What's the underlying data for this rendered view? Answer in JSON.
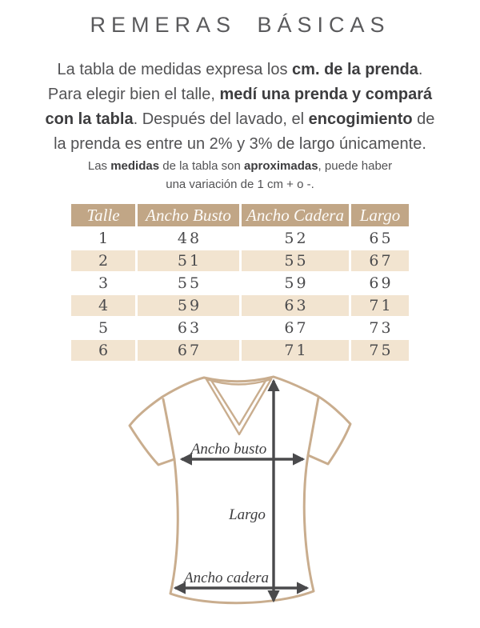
{
  "title": "REMERAS BÁSICAS",
  "intro": {
    "lines": [
      {
        "size": "large",
        "segments": [
          {
            "text": "La tabla de medidas expresa los ",
            "bold": false
          },
          {
            "text": "cm. de la prenda",
            "bold": true
          },
          {
            "text": ".",
            "bold": false
          }
        ]
      },
      {
        "size": "large",
        "segments": [
          {
            "text": "Para elegir bien el talle, ",
            "bold": false
          },
          {
            "text": "medí una prenda y compará",
            "bold": true
          }
        ]
      },
      {
        "size": "large",
        "segments": [
          {
            "text": "con la tabla",
            "bold": true
          },
          {
            "text": ". Después del lavado, el ",
            "bold": false
          },
          {
            "text": "encogimiento",
            "bold": true
          },
          {
            "text": " de",
            "bold": false
          }
        ]
      },
      {
        "size": "large",
        "segments": [
          {
            "text": "la prenda es entre un 2% y 3% de largo únicamente.",
            "bold": false
          }
        ]
      },
      {
        "size": "small",
        "segments": [
          {
            "text": "Las ",
            "bold": false
          },
          {
            "text": "medidas",
            "bold": true
          },
          {
            "text": " de la tabla son ",
            "bold": false
          },
          {
            "text": "aproximadas",
            "bold": true
          },
          {
            "text": ", puede haber",
            "bold": false
          }
        ]
      },
      {
        "size": "small",
        "segments": [
          {
            "text": "una variación de 1 cm + o -.",
            "bold": false
          }
        ]
      }
    ]
  },
  "table": {
    "columns": [
      "Talle",
      "Ancho Busto",
      "Ancho Cadera",
      "Largo"
    ],
    "rows": [
      [
        "1",
        "48",
        "52",
        "65"
      ],
      [
        "2",
        "51",
        "55",
        "67"
      ],
      [
        "3",
        "55",
        "59",
        "69"
      ],
      [
        "4",
        "59",
        "63",
        "71"
      ],
      [
        "5",
        "63",
        "67",
        "73"
      ],
      [
        "6",
        "67",
        "71",
        "75"
      ]
    ]
  },
  "diagram": {
    "labels": {
      "bust": "Ancho busto",
      "length": "Largo",
      "hip": "Ancho cadera"
    }
  },
  "colors": {
    "title_text": "#5a5a5c",
    "body_text": "#525254",
    "bold_text": "#3d3d3f",
    "table_header_bg": "#c1a686",
    "table_row_alt_bg": "#f2e4d0",
    "table_cell_text": "#4b4b4d",
    "shirt_outline": "#c9ad8e",
    "arrow": "#4a4a4c"
  }
}
